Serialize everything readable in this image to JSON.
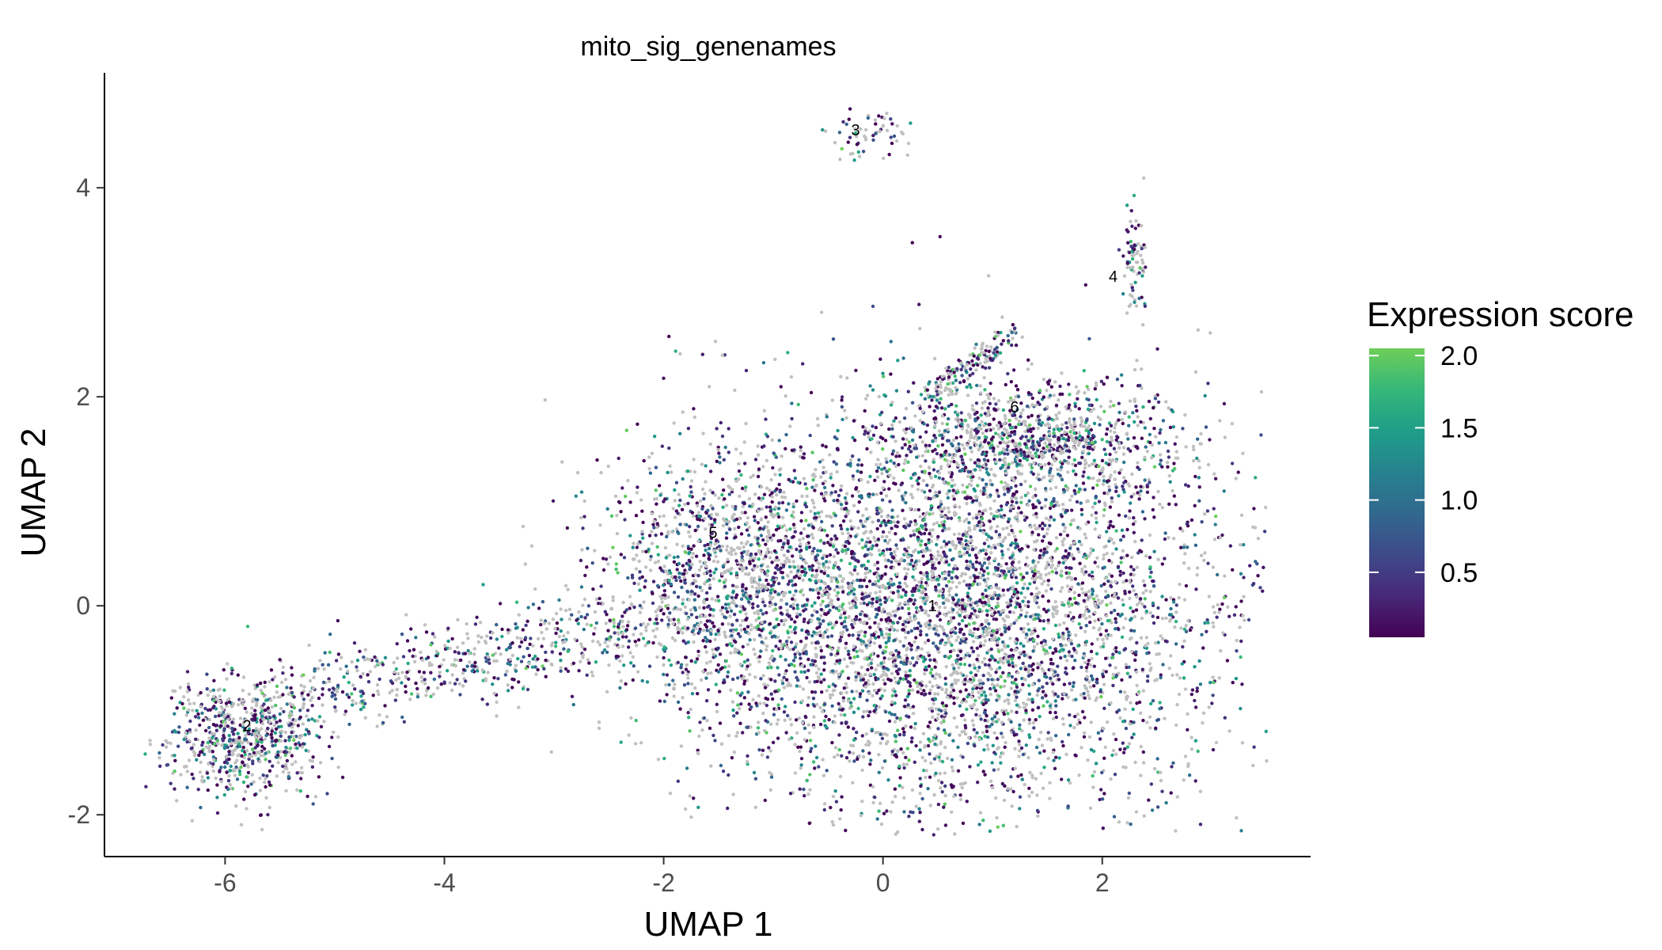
{
  "chart_data": {
    "type": "scatter",
    "title": "mito_sig_genenames",
    "xlabel": "UMAP 1",
    "ylabel": "UMAP 2",
    "xlim": [
      -7.1,
      3.9
    ],
    "ylim": [
      -2.4,
      5.1
    ],
    "xticks": [
      -6,
      -4,
      -2,
      0,
      2
    ],
    "yticks": [
      -2,
      0,
      2,
      4
    ],
    "grid": false,
    "legend": {
      "title": "Expression score",
      "placement": "right",
      "type": "colorbar",
      "range": [
        0.05,
        2.05
      ],
      "ticks": [
        0.5,
        1.0,
        1.5,
        2.0
      ],
      "tick_labels": [
        "0.5",
        "1.0",
        "1.5",
        "2.0"
      ],
      "colormap": [
        "#440154",
        "#482878",
        "#3e4a89",
        "#31688e",
        "#26828e",
        "#1f9e89",
        "#35b779",
        "#6ece58"
      ]
    },
    "na_color": "#c0c0c0",
    "cluster_labels": [
      {
        "label": "1",
        "x": 0.45,
        "y": -0.05
      },
      {
        "label": "2",
        "x": -5.8,
        "y": -1.2
      },
      {
        "label": "3",
        "x": -0.25,
        "y": 4.5
      },
      {
        "label": "4",
        "x": 2.1,
        "y": 3.1
      },
      {
        "label": "5",
        "x": -1.55,
        "y": 0.65
      },
      {
        "label": "6",
        "x": 1.2,
        "y": 1.85
      }
    ],
    "clusters": [
      {
        "name": "1",
        "center": [
          0.6,
          -0.05
        ],
        "spread": [
          1.25,
          0.95
        ],
        "shape": "blob",
        "n": 5200
      },
      {
        "name": "2",
        "center": [
          -5.85,
          -1.25
        ],
        "spread": [
          0.35,
          0.28
        ],
        "shape": "blob",
        "n": 700
      },
      {
        "name": "3",
        "center": [
          -0.1,
          4.5
        ],
        "spread": [
          0.2,
          0.12
        ],
        "shape": "blob",
        "n": 60
      },
      {
        "name": "4",
        "center": [
          2.3,
          3.3
        ],
        "spread": [
          0.05,
          0.28
        ],
        "shape": "blob",
        "n": 80
      },
      {
        "name": "5",
        "center": [
          -1.5,
          0.3
        ],
        "spread": [
          0.5,
          0.6
        ],
        "shape": "blob",
        "n": 900
      },
      {
        "name": "6",
        "center": [
          1.3,
          1.6
        ],
        "spread": [
          0.7,
          0.25
        ],
        "shape": "blob",
        "n": 900
      },
      {
        "name": "bridge",
        "from": [
          -5.5,
          -0.85
        ],
        "to": [
          -2.2,
          -0.2
        ],
        "spread": 0.2,
        "shape": "bridge",
        "n": 550
      },
      {
        "name": "arm",
        "from": [
          0.4,
          2.0
        ],
        "to": [
          1.2,
          2.6
        ],
        "spread": 0.08,
        "shape": "bridge",
        "n": 150
      }
    ],
    "na_fraction": 0.42
  }
}
